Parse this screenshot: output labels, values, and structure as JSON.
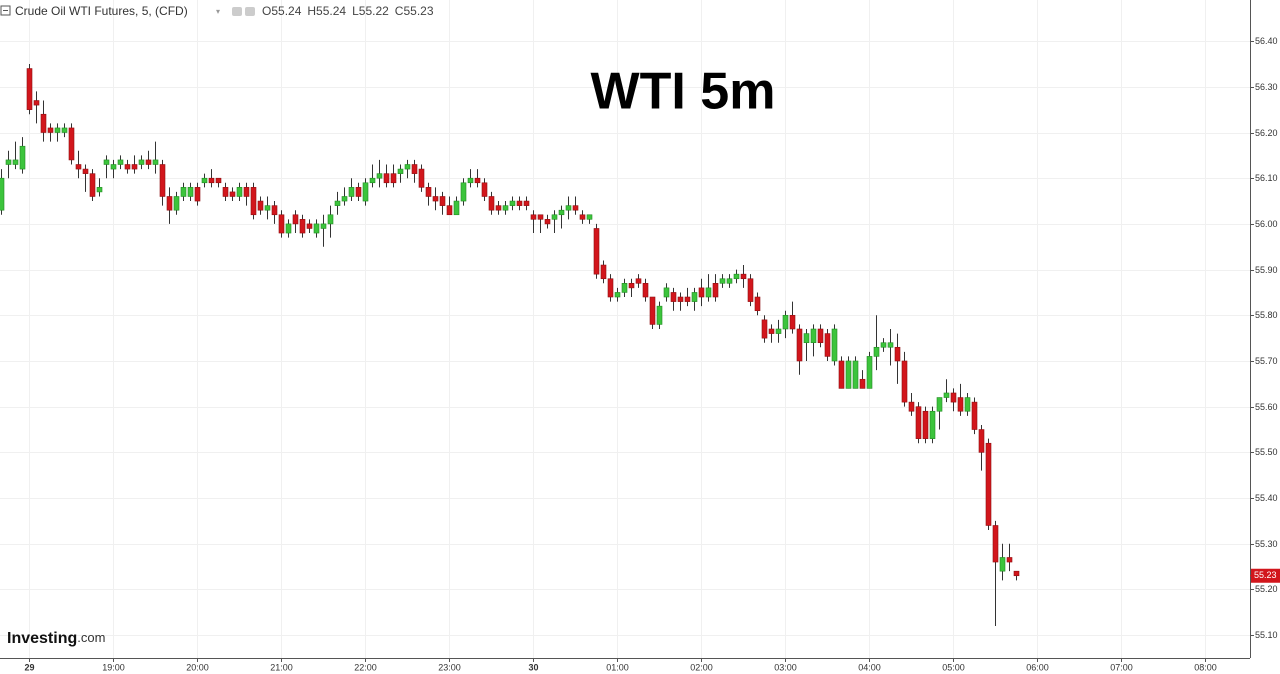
{
  "chart_data": {
    "type": "candlestick",
    "symbol": "Crude Oil WTI Futures, 5, (CFD)",
    "ohlc": [
      {
        "label": "O",
        "value": 55.24
      },
      {
        "label": "H",
        "value": 55.24
      },
      {
        "label": "L",
        "value": 55.22
      },
      {
        "label": "C",
        "value": 55.23
      }
    ],
    "title": "WTI 5m",
    "watermark": {
      "brand": "Investing",
      "suffix": ".com"
    },
    "up_color": "#3cc43c",
    "down_color": "#d2161c",
    "last_price": 55.23,
    "grid": true,
    "x": [
      0,
      1,
      2,
      3,
      4,
      5,
      6,
      7,
      8,
      9,
      10,
      11,
      12,
      13,
      14,
      15,
      16,
      17,
      18,
      19,
      20,
      21,
      22,
      23,
      24,
      25,
      26,
      27,
      28,
      29,
      30,
      31,
      32,
      33,
      34,
      35,
      36,
      37,
      38,
      39,
      40,
      41,
      42,
      43,
      44,
      45,
      46,
      47,
      48,
      49,
      50,
      51,
      52,
      53,
      54,
      55,
      56,
      57,
      58,
      59,
      60,
      61,
      62,
      63,
      64,
      65,
      66,
      67,
      68,
      69,
      70,
      71,
      72,
      73,
      74,
      75,
      76,
      77,
      78,
      79,
      80,
      81,
      82,
      83,
      84,
      85,
      86,
      87,
      88,
      89,
      90,
      91,
      92,
      93,
      94,
      95,
      96,
      97,
      98,
      99,
      100,
      101,
      102,
      103,
      104,
      105,
      106,
      107,
      108,
      109,
      110,
      111,
      112,
      113,
      114,
      115,
      116,
      117,
      118,
      119,
      120,
      121,
      122,
      123,
      124,
      125,
      126,
      127,
      128,
      129,
      130,
      131,
      132,
      133,
      134,
      135,
      136,
      137,
      138,
      139,
      140,
      141,
      142,
      143,
      144,
      145
    ],
    "open": [
      56.03,
      56.13,
      56.13,
      56.12,
      56.34,
      56.27,
      56.24,
      56.21,
      56.2,
      56.2,
      56.21,
      56.13,
      56.12,
      56.11,
      56.07,
      56.13,
      56.12,
      56.13,
      56.13,
      56.13,
      56.13,
      56.14,
      56.13,
      56.13,
      56.06,
      56.03,
      56.06,
      56.06,
      56.08,
      56.09,
      56.1,
      56.1,
      56.08,
      56.07,
      56.06,
      56.08,
      56.08,
      56.05,
      56.03,
      56.04,
      56.02,
      55.98,
      56.02,
      56.01,
      56.0,
      55.98,
      55.99,
      56.0,
      56.04,
      56.05,
      56.06,
      56.08,
      56.05,
      56.09,
      56.1,
      56.11,
      56.11,
      56.11,
      56.12,
      56.13,
      56.12,
      56.08,
      56.06,
      56.06,
      56.04,
      56.02,
      56.05,
      56.09,
      56.1,
      56.09,
      56.06,
      56.04,
      56.03,
      56.04,
      56.05,
      56.05,
      56.02,
      56.02,
      56.01,
      56.01,
      56.02,
      56.03,
      56.04,
      56.02,
      56.01,
      55.99,
      55.91,
      55.88,
      55.84,
      55.85,
      55.87,
      55.88,
      55.87,
      55.84,
      55.78,
      55.84,
      55.85,
      55.84,
      55.84,
      55.83,
      55.86,
      55.84,
      55.87,
      55.87,
      55.87,
      55.88,
      55.89,
      55.88,
      55.84,
      55.79,
      55.77,
      55.76,
      55.77,
      55.8,
      55.77,
      55.74,
      55.74,
      55.77,
      55.76,
      55.7,
      55.7,
      55.64,
      55.64,
      55.66,
      55.64,
      55.71,
      55.73,
      55.73,
      55.73,
      55.7,
      55.61,
      55.6,
      55.59,
      55.53,
      55.59,
      55.62,
      55.63,
      55.62,
      55.59,
      55.61,
      55.55,
      55.52,
      55.34,
      55.24,
      55.27,
      55.24
    ],
    "high": [
      56.12,
      56.16,
      56.18,
      56.19,
      56.35,
      56.29,
      56.27,
      56.22,
      56.22,
      56.22,
      56.22,
      56.16,
      56.13,
      56.12,
      56.1,
      56.15,
      56.14,
      56.15,
      56.14,
      56.15,
      56.15,
      56.16,
      56.18,
      56.14,
      56.08,
      56.07,
      56.09,
      56.09,
      56.09,
      56.11,
      56.12,
      56.1,
      56.09,
      56.08,
      56.09,
      56.09,
      56.09,
      56.06,
      56.06,
      56.05,
      56.03,
      56.01,
      56.03,
      56.02,
      56.01,
      56.01,
      56.02,
      56.04,
      56.07,
      56.08,
      56.1,
      56.09,
      56.1,
      56.13,
      56.14,
      56.13,
      56.13,
      56.13,
      56.14,
      56.14,
      56.13,
      56.09,
      56.08,
      56.07,
      56.06,
      56.06,
      56.1,
      56.12,
      56.12,
      56.1,
      56.07,
      56.05,
      56.05,
      56.06,
      56.06,
      56.06,
      56.03,
      56.02,
      56.02,
      56.03,
      56.04,
      56.06,
      56.06,
      56.03,
      56.02,
      56.0,
      55.92,
      55.89,
      55.86,
      55.88,
      55.88,
      55.89,
      55.88,
      55.84,
      55.83,
      55.87,
      55.86,
      55.85,
      55.86,
      55.86,
      55.88,
      55.89,
      55.89,
      55.89,
      55.89,
      55.9,
      55.91,
      55.89,
      55.85,
      55.8,
      55.78,
      55.79,
      55.81,
      55.83,
      55.78,
      55.77,
      55.78,
      55.78,
      55.77,
      55.78,
      55.71,
      55.71,
      55.71,
      55.68,
      55.72,
      55.8,
      55.75,
      55.77,
      55.76,
      55.72,
      55.63,
      55.61,
      55.6,
      55.6,
      55.62,
      55.66,
      55.64,
      55.65,
      55.63,
      55.62,
      55.56,
      55.53,
      55.35,
      55.3,
      55.3,
      55.24
    ],
    "low": [
      56.02,
      56.1,
      56.12,
      56.11,
      56.24,
      56.22,
      56.18,
      56.18,
      56.18,
      56.19,
      56.13,
      56.1,
      56.07,
      56.05,
      56.06,
      56.1,
      56.1,
      56.12,
      56.11,
      56.11,
      56.12,
      56.12,
      56.11,
      56.04,
      56.0,
      56.02,
      56.05,
      56.05,
      56.04,
      56.08,
      56.08,
      56.08,
      56.05,
      56.05,
      56.05,
      56.04,
      56.01,
      56.02,
      56.01,
      56.0,
      55.97,
      55.97,
      55.98,
      55.97,
      55.98,
      55.97,
      55.95,
      55.97,
      56.02,
      56.04,
      56.05,
      56.05,
      56.04,
      56.08,
      56.08,
      56.08,
      56.08,
      56.09,
      56.1,
      56.09,
      56.07,
      56.04,
      56.03,
      56.02,
      56.02,
      56.02,
      56.04,
      56.08,
      56.08,
      56.05,
      56.02,
      56.02,
      56.02,
      56.03,
      56.03,
      56.03,
      55.98,
      55.98,
      55.99,
      55.98,
      55.99,
      56.01,
      56.02,
      56.0,
      56.0,
      55.88,
      55.87,
      55.83,
      55.83,
      55.84,
      55.84,
      55.86,
      55.83,
      55.77,
      55.77,
      55.83,
      55.81,
      55.81,
      55.82,
      55.81,
      55.82,
      55.83,
      55.83,
      55.86,
      55.86,
      55.87,
      55.86,
      55.82,
      55.8,
      55.74,
      55.74,
      55.74,
      55.75,
      55.76,
      55.67,
      55.7,
      55.71,
      55.73,
      55.7,
      55.69,
      55.64,
      55.64,
      55.64,
      55.64,
      55.64,
      55.68,
      55.72,
      55.69,
      55.65,
      55.6,
      55.58,
      55.52,
      55.52,
      55.52,
      55.55,
      55.61,
      55.59,
      55.58,
      55.58,
      55.54,
      55.46,
      55.33,
      55.12,
      55.22,
      55.24,
      55.22
    ],
    "close": [
      56.1,
      56.14,
      56.14,
      56.17,
      56.25,
      56.26,
      56.2,
      56.2,
      56.21,
      56.21,
      56.14,
      56.12,
      56.11,
      56.06,
      56.08,
      56.14,
      56.13,
      56.14,
      56.12,
      56.12,
      56.14,
      56.13,
      56.14,
      56.06,
      56.03,
      56.06,
      56.08,
      56.08,
      56.05,
      56.1,
      56.09,
      56.09,
      56.06,
      56.06,
      56.08,
      56.06,
      56.02,
      56.03,
      56.04,
      56.02,
      55.98,
      56.0,
      56.0,
      55.98,
      55.99,
      56.0,
      56.0,
      56.02,
      56.05,
      56.06,
      56.08,
      56.06,
      56.09,
      56.1,
      56.11,
      56.09,
      56.09,
      56.12,
      56.13,
      56.11,
      56.08,
      56.06,
      56.05,
      56.04,
      56.02,
      56.05,
      56.09,
      56.1,
      56.09,
      56.06,
      56.03,
      56.03,
      56.04,
      56.05,
      56.04,
      56.04,
      56.01,
      56.01,
      56.0,
      56.02,
      56.03,
      56.04,
      56.03,
      56.01,
      56.02,
      55.89,
      55.88,
      55.84,
      55.85,
      55.87,
      55.86,
      55.87,
      55.84,
      55.78,
      55.82,
      55.86,
      55.83,
      55.83,
      55.83,
      55.85,
      55.84,
      55.86,
      55.84,
      55.88,
      55.88,
      55.89,
      55.88,
      55.83,
      55.81,
      55.75,
      55.76,
      55.77,
      55.8,
      55.77,
      55.7,
      55.76,
      55.77,
      55.74,
      55.71,
      55.77,
      55.64,
      55.7,
      55.7,
      55.64,
      55.71,
      55.73,
      55.74,
      55.74,
      55.7,
      55.61,
      55.59,
      55.53,
      55.53,
      55.59,
      55.62,
      55.63,
      55.61,
      55.59,
      55.62,
      55.55,
      55.5,
      55.34,
      55.26,
      55.27,
      55.26,
      55.23
    ],
    "xlim": [
      -0.14,
      178.43
    ],
    "xticks": [
      {
        "value": 4,
        "label": "29"
      },
      {
        "value": 16,
        "label": "19:00"
      },
      {
        "value": 28,
        "label": "20:00"
      },
      {
        "value": 40,
        "label": "21:00"
      },
      {
        "value": 52,
        "label": "22:00"
      },
      {
        "value": 64,
        "label": "23:00"
      },
      {
        "value": 76,
        "label": "30"
      },
      {
        "value": 88,
        "label": "01:00"
      },
      {
        "value": 100,
        "label": "02:00"
      },
      {
        "value": 112,
        "label": "03:00"
      },
      {
        "value": 124,
        "label": "04:00"
      },
      {
        "value": 136,
        "label": "05:00"
      },
      {
        "value": 148,
        "label": "06:00"
      },
      {
        "value": 160,
        "label": "07:00"
      },
      {
        "value": 172,
        "label": "08:00"
      }
    ],
    "ylim": [
      55.05,
      56.49
    ],
    "yticks": [
      {
        "value": 56.4,
        "label": "56.40"
      },
      {
        "value": 56.3,
        "label": "56.30"
      },
      {
        "value": 56.2,
        "label": "56.20"
      },
      {
        "value": 56.1,
        "label": "56.10"
      },
      {
        "value": 56.0,
        "label": "56.00"
      },
      {
        "value": 55.9,
        "label": "55.90"
      },
      {
        "value": 55.8,
        "label": "55.80"
      },
      {
        "value": 55.7,
        "label": "55.70"
      },
      {
        "value": 55.6,
        "label": "55.60"
      },
      {
        "value": 55.5,
        "label": "55.50"
      },
      {
        "value": 55.4,
        "label": "55.40"
      },
      {
        "value": 55.3,
        "label": "55.30"
      },
      {
        "value": 55.2,
        "label": "55.20"
      },
      {
        "value": 55.1,
        "label": "55.10"
      }
    ]
  }
}
